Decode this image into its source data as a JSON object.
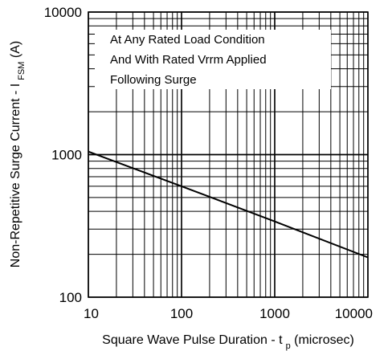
{
  "chart_data": {
    "type": "line",
    "xscale": "log",
    "yscale": "log",
    "xlim": [
      10,
      10000
    ],
    "ylim": [
      100,
      10000
    ],
    "grid": true,
    "x_ticks": [
      "10",
      "100",
      "1000",
      "10000"
    ],
    "y_ticks": [
      "100",
      "1000",
      "10000"
    ],
    "xlabel": "Square Wave Pulse Duration - t",
    "xlabel_sub": "p",
    "xlabel_suffix": " (microsec)",
    "ylabel": "Non-Repetitive Surge Current - I",
    "ylabel_sub": "FSM",
    "ylabel_suffix": " (A)",
    "annotations": [
      "At Any Rated Load Condition",
      "And With Rated Vrrm Applied",
      "Following Surge"
    ],
    "series": [
      {
        "x": [
          10,
          100,
          1000,
          10000
        ],
        "y": [
          1050,
          600,
          340,
          190
        ]
      }
    ]
  }
}
